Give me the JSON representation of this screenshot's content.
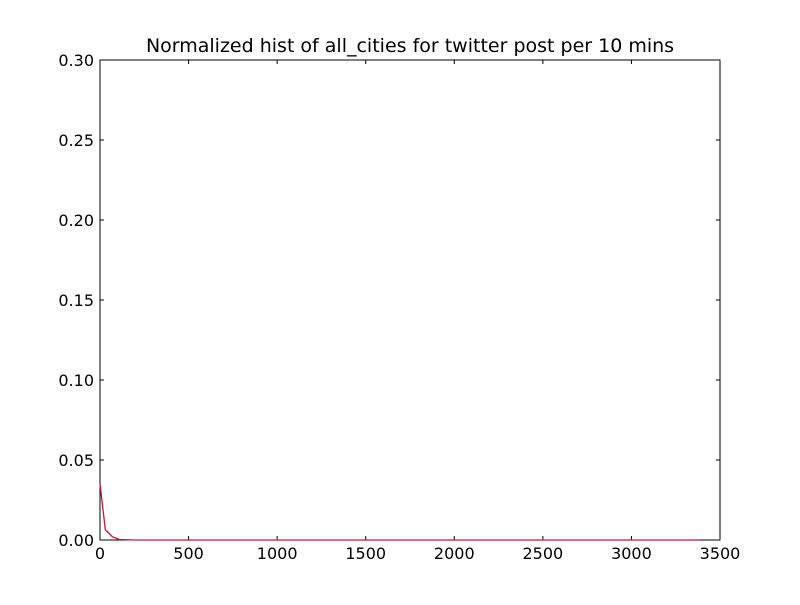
{
  "chart_data": {
    "type": "line",
    "title": "Normalized hist of all_cities for twitter post per 10 mins",
    "xlabel": "",
    "ylabel": "",
    "xlim": [
      0,
      3500
    ],
    "ylim": [
      0,
      0.3
    ],
    "x_ticks": [
      0,
      500,
      1000,
      1500,
      2000,
      2500,
      3000,
      3500
    ],
    "x_tick_labels": [
      "0",
      "500",
      "1000",
      "1500",
      "2000",
      "2500",
      "3000",
      "3500"
    ],
    "y_ticks": [
      0,
      0.05,
      0.1,
      0.15,
      0.2,
      0.25,
      0.3
    ],
    "y_tick_labels": [
      "0.00",
      "0.05",
      "0.10",
      "0.15",
      "0.20",
      "0.25",
      "0.30"
    ],
    "grid": false,
    "legend": "none",
    "series": [
      {
        "color": "#c0183d",
        "x": [
          0,
          30,
          70,
          110,
          200,
          500,
          1000,
          1500,
          2000,
          2500,
          3000,
          3390
        ],
        "y": [
          0.035,
          0.0065,
          0.002,
          0.0003,
          0.0,
          0.0,
          0.0,
          0.0,
          0.0,
          0.0,
          0.0,
          0.0
        ]
      }
    ]
  }
}
